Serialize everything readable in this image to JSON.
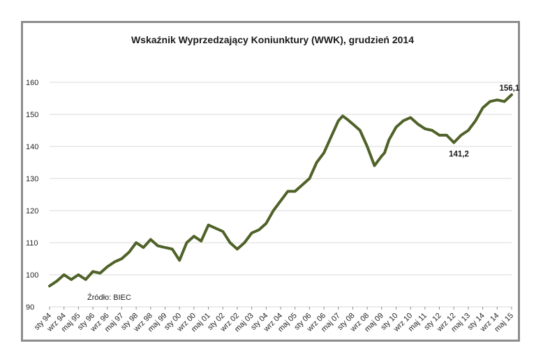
{
  "chart_data": {
    "type": "line",
    "title": "Wskaźnik Wyprzedzający Koniunktury (WWK), grudzień 2014",
    "xlabel": "",
    "ylabel": "",
    "ylim": [
      90,
      160
    ],
    "yticks": [
      90,
      100,
      110,
      120,
      130,
      140,
      150,
      160
    ],
    "xticks": [
      "sty 94",
      "wrz 94",
      "maj 95",
      "sty 96",
      "wrz 96",
      "maj 97",
      "sty 98",
      "wrz 98",
      "maj 99",
      "sty 00",
      "wrz 00",
      "maj 01",
      "sty 02",
      "wrz 02",
      "maj 03",
      "sty 04",
      "wrz 04",
      "maj 05",
      "sty 06",
      "wrz 06",
      "maj 07",
      "sty 08",
      "wrz 08",
      "maj 09",
      "sty 10",
      "wrz 10",
      "maj 11",
      "sty 12",
      "wrz 12",
      "maj 13",
      "sty 14",
      "wrz 14",
      "maj 15"
    ],
    "grid": true,
    "line_color": "#4f6228",
    "series": [
      {
        "name": "",
        "x_index": [
          0,
          0.5,
          1,
          1.5,
          2,
          2.5,
          3,
          3.5,
          4,
          4.5,
          5,
          5.5,
          6,
          6.5,
          7,
          7.5,
          8,
          8.5,
          9,
          9.5,
          10,
          10.5,
          11,
          11.5,
          12,
          12.5,
          13,
          13.5,
          14,
          14.5,
          15,
          15.5,
          16,
          16.5,
          17,
          17.5,
          18,
          18.5,
          19,
          19.5,
          20,
          20.3,
          20.6,
          21,
          21.5,
          22,
          22.5,
          23,
          23.2,
          23.5,
          24,
          24.5,
          25,
          25.5,
          26,
          26.5,
          27,
          27.5,
          28,
          28.5,
          29,
          29.5,
          30,
          30.5,
          31,
          31.5,
          32
        ],
        "values": [
          96.5,
          98,
          100,
          98.5,
          100,
          98.5,
          101,
          100.5,
          102.5,
          104,
          105,
          107,
          110,
          108.5,
          111,
          109,
          108.5,
          108,
          104.5,
          110,
          112,
          110.5,
          115.5,
          114.5,
          113.5,
          110,
          108,
          110,
          113,
          114,
          116,
          120,
          123,
          126,
          126,
          128,
          130,
          135,
          138,
          143,
          148,
          149.5,
          148.5,
          147,
          145,
          140,
          134,
          137,
          138,
          142,
          146,
          148,
          149,
          147,
          145.5,
          145,
          143.5,
          143.5,
          141.2,
          143.5,
          145,
          148,
          152,
          154,
          154.5,
          154,
          156.1
        ]
      }
    ],
    "annotations": [
      {
        "text": "156,1",
        "x_index": 31.85,
        "y": 156.1
      },
      {
        "text": "141,2",
        "x_index": 28.35,
        "y": 141.2
      }
    ],
    "source_note": "Źródło: BIEC"
  }
}
